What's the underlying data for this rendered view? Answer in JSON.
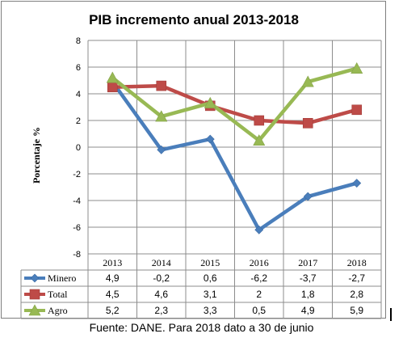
{
  "source_note": "Fuente: DANE. Para 2018 dato a 30 de junio",
  "chart_data": {
    "type": "line",
    "title": "PIB incremento anual 2013-2018",
    "xlabel": "",
    "ylabel": "Porcentaje %",
    "ylim": [
      -8,
      8
    ],
    "yticks": [
      "-8",
      "-6",
      "-4",
      "-2",
      "0",
      "2",
      "4",
      "6",
      "8"
    ],
    "grid": true,
    "legend": "data-table",
    "categories": [
      "2013",
      "2014",
      "2015",
      "2016",
      "2017",
      "2018"
    ],
    "series": [
      {
        "name": "Minero",
        "color": "#4a7ebb",
        "marker": "diamond",
        "values": [
          4.9,
          -0.2,
          0.6,
          -6.2,
          -3.7,
          -2.7
        ],
        "labels": [
          "4,9",
          "-0,2",
          "0,6",
          "-6,2",
          "-3,7",
          "-2,7"
        ]
      },
      {
        "name": "Total",
        "color": "#be4b48",
        "marker": "square",
        "values": [
          4.5,
          4.6,
          3.1,
          2,
          1.8,
          2.8
        ],
        "labels": [
          "4,5",
          "4,6",
          "3,1",
          "2",
          "1,8",
          "2,8"
        ]
      },
      {
        "name": "Agro",
        "color": "#98b954",
        "marker": "triangle",
        "values": [
          5.2,
          2.3,
          3.3,
          0.5,
          4.9,
          5.9
        ],
        "labels": [
          "5,2",
          "2,3",
          "3,3",
          "0,5",
          "4,9",
          "5,9"
        ]
      }
    ]
  }
}
